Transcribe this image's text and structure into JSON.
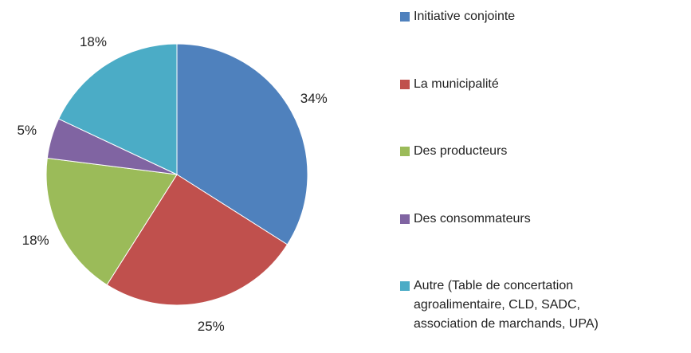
{
  "chart_data": {
    "type": "pie",
    "categories": [
      "Initiative conjointe",
      "La municipalité",
      "Des producteurs",
      "Des consommateurs",
      "Autre (Table de concertation agroalimentaire, CLD, SADC, association de marchands, UPA)"
    ],
    "values": [
      34,
      25,
      18,
      5,
      18
    ],
    "value_labels": [
      "34%",
      "25%",
      "18%",
      "5%",
      "18%"
    ],
    "colors": [
      "#4f81bd",
      "#c0504d",
      "#9bbb59",
      "#8064a2",
      "#4bacc6"
    ],
    "legend": "right"
  }
}
